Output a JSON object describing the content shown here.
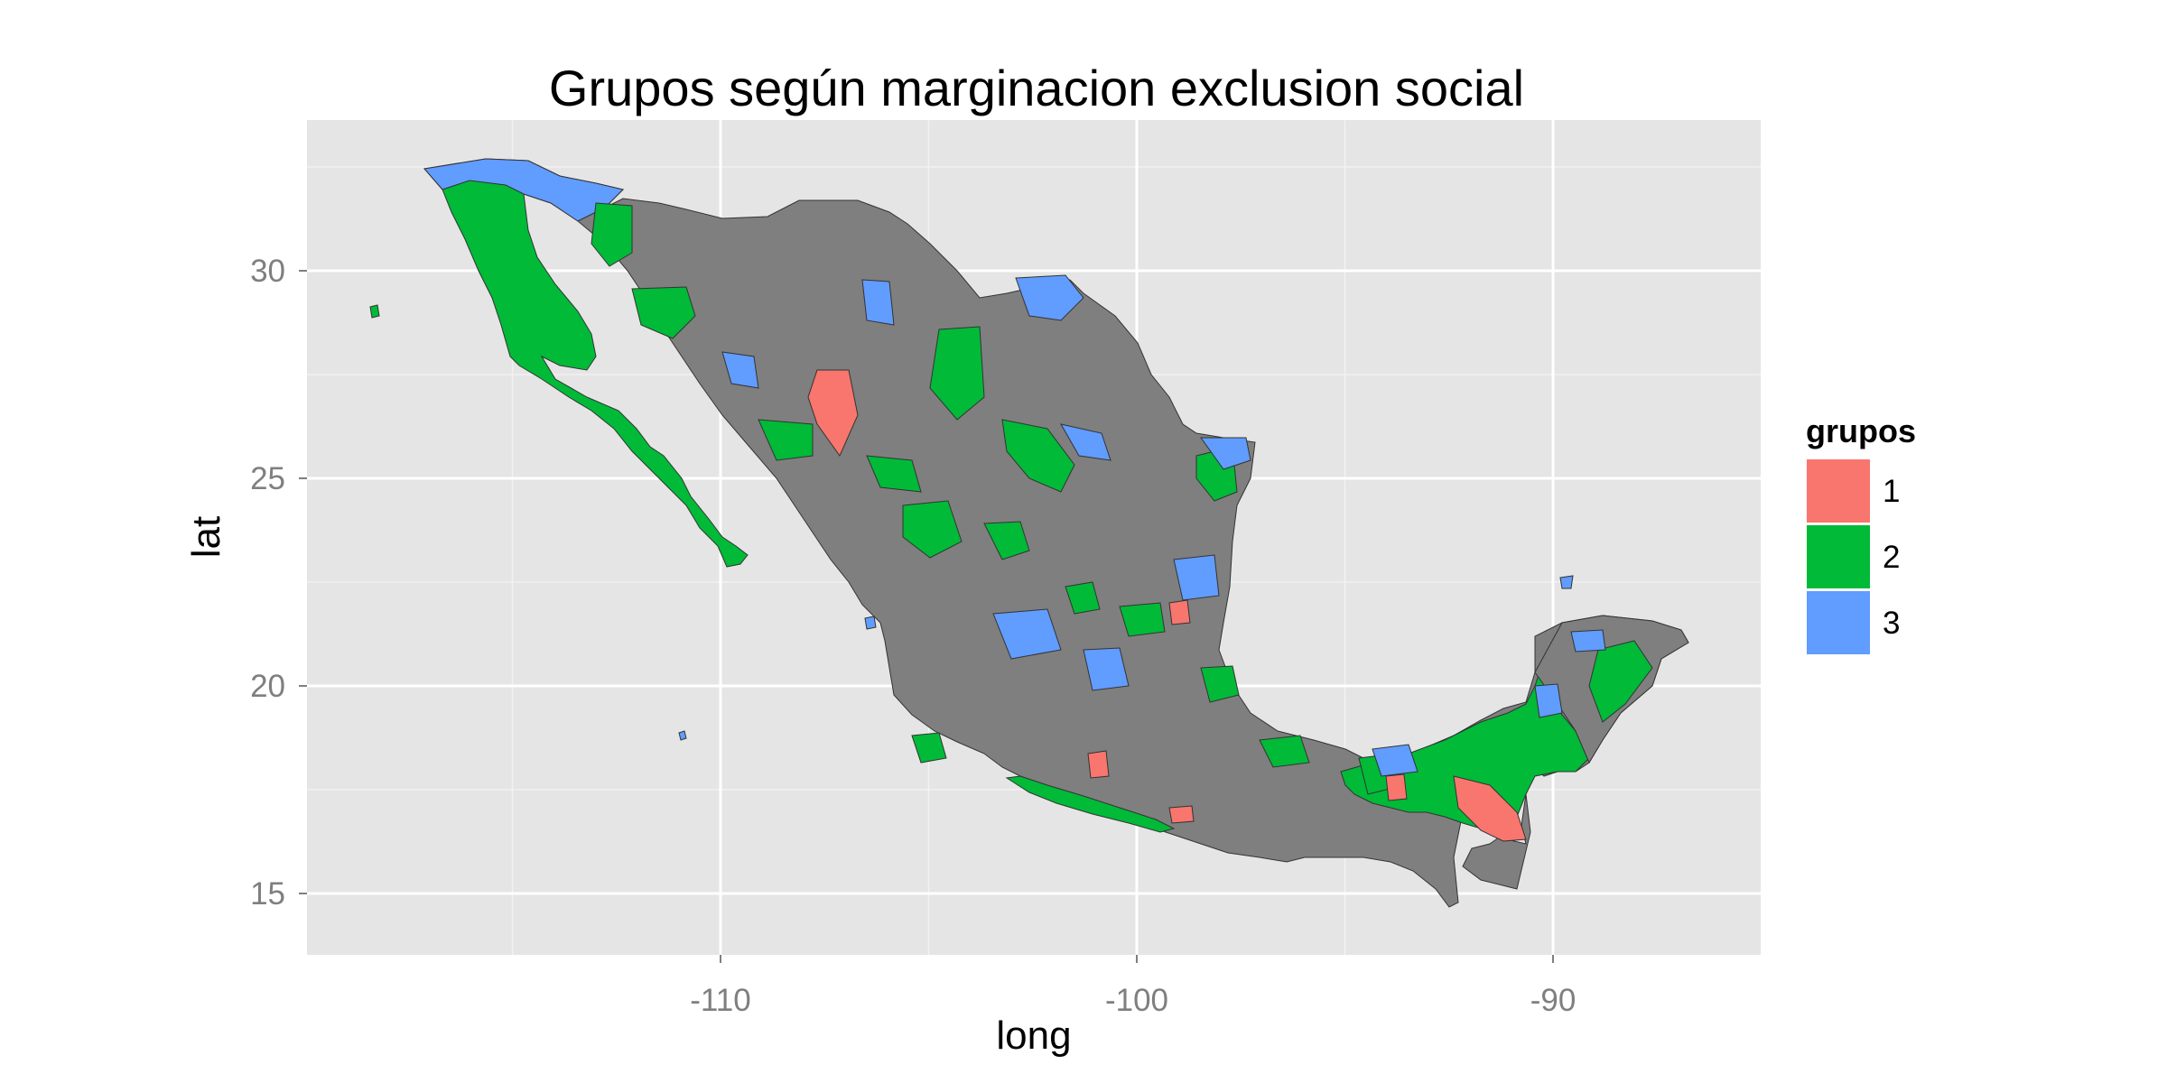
{
  "title": "Grupos según marginacion exclusion social",
  "xlabel": "long",
  "ylabel": "lat",
  "x_ticks": [
    {
      "value": -110,
      "label": "-110"
    },
    {
      "value": -100,
      "label": "-100"
    },
    {
      "value": -90,
      "label": "-90"
    }
  ],
  "y_ticks": [
    {
      "value": 30,
      "label": "30"
    },
    {
      "value": 25,
      "label": "25"
    },
    {
      "value": 20,
      "label": "20"
    },
    {
      "value": 15,
      "label": "15"
    }
  ],
  "legend": {
    "title": "grupos",
    "items": [
      {
        "label": "1",
        "color": "#F8766D"
      },
      {
        "label": "2",
        "color": "#00BA38"
      },
      {
        "label": "3",
        "color": "#619CFF"
      }
    ]
  },
  "colors": {
    "panel": "#E5E5E5",
    "grid_major": "#FFFFFF",
    "grid_minor": "#F2F2F2",
    "unassigned_region": "#7F7F7F"
  }
}
